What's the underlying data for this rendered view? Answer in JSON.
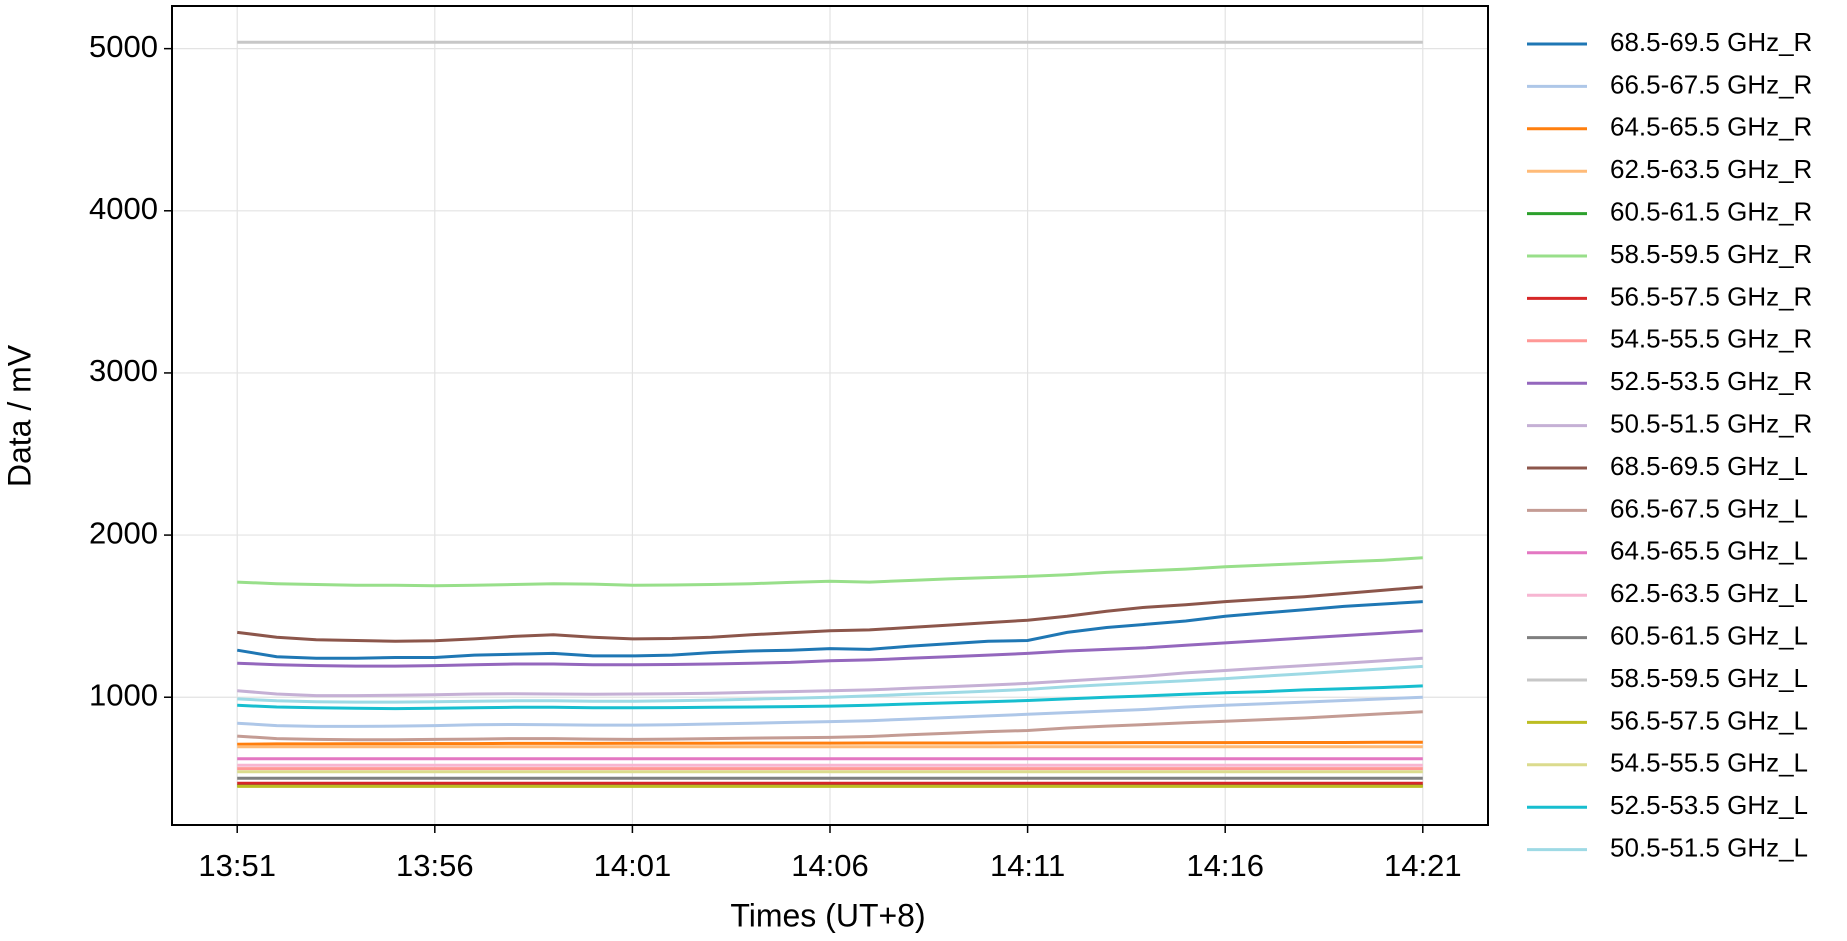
{
  "chart_data": {
    "type": "line",
    "xlabel": "Times (UT+8)",
    "ylabel": "Data / mV",
    "x": [
      "13:51",
      "13:52",
      "13:53",
      "13:54",
      "13:55",
      "13:56",
      "13:57",
      "13:58",
      "13:59",
      "14:00",
      "14:01",
      "14:02",
      "14:03",
      "14:04",
      "14:05",
      "14:06",
      "14:07",
      "14:08",
      "14:09",
      "14:10",
      "14:11",
      "14:12",
      "14:13",
      "14:14",
      "14:15",
      "14:16",
      "14:17",
      "14:18",
      "14:19",
      "14:20",
      "14:21"
    ],
    "xticks": [
      "13:51",
      "13:56",
      "14:01",
      "14:06",
      "14:11",
      "14:16",
      "14:21"
    ],
    "ylim": [
      212,
      5263
    ],
    "yticks": [
      1000,
      2000,
      3000,
      4000,
      5000
    ],
    "grid": true,
    "legend": "outside-right",
    "series": [
      {
        "name": "68.5-69.5 GHz_R",
        "color": "#1f77b4",
        "values": [
          1290,
          1250,
          1240,
          1240,
          1245,
          1245,
          1260,
          1265,
          1270,
          1255,
          1255,
          1260,
          1275,
          1285,
          1290,
          1300,
          1295,
          1315,
          1330,
          1345,
          1350,
          1400,
          1430,
          1450,
          1470,
          1500,
          1520,
          1540,
          1560,
          1575,
          1590
        ]
      },
      {
        "name": "66.5-67.5 GHz_R",
        "color": "#aec7e8",
        "values": [
          840,
          825,
          820,
          820,
          822,
          825,
          830,
          832,
          830,
          828,
          828,
          830,
          835,
          840,
          845,
          850,
          855,
          865,
          875,
          885,
          895,
          905,
          915,
          925,
          940,
          950,
          960,
          970,
          980,
          990,
          1000
        ]
      },
      {
        "name": "64.5-65.5 GHz_R",
        "color": "#ff7f0e",
        "values": [
          710,
          712,
          712,
          713,
          713,
          714,
          714,
          715,
          715,
          715,
          716,
          716,
          716,
          717,
          717,
          717,
          718,
          718,
          718,
          718,
          719,
          719,
          719,
          720,
          720,
          720,
          721,
          721,
          721,
          722,
          722
        ]
      },
      {
        "name": "62.5-63.5 GHz_R",
        "color": "#ffbb78",
        "values": [
          695,
          695,
          695,
          695,
          695,
          695,
          695,
          695,
          695,
          695,
          695,
          695,
          695,
          695,
          695,
          695,
          695,
          695,
          695,
          695,
          695,
          695,
          695,
          695,
          695,
          695,
          695,
          695,
          695,
          695,
          695
        ]
      },
      {
        "name": "60.5-61.5 GHz_R",
        "color": "#2ca02c",
        "values": [
          455,
          455,
          455,
          455,
          455,
          455,
          455,
          455,
          455,
          455,
          455,
          455,
          455,
          455,
          455,
          455,
          455,
          455,
          455,
          455,
          455,
          455,
          455,
          455,
          455,
          455,
          455,
          455,
          455,
          455,
          455
        ]
      },
      {
        "name": "58.5-59.5 GHz_R",
        "color": "#98df8a",
        "values": [
          1710,
          1700,
          1695,
          1690,
          1690,
          1688,
          1690,
          1695,
          1700,
          1698,
          1690,
          1692,
          1695,
          1700,
          1708,
          1715,
          1710,
          1720,
          1730,
          1738,
          1745,
          1755,
          1770,
          1780,
          1790,
          1805,
          1815,
          1825,
          1835,
          1845,
          1860
        ]
      },
      {
        "name": "56.5-57.5 GHz_R",
        "color": "#d62728",
        "values": [
          470,
          470,
          470,
          470,
          470,
          470,
          470,
          470,
          470,
          470,
          470,
          470,
          470,
          470,
          470,
          470,
          470,
          470,
          470,
          470,
          470,
          470,
          470,
          470,
          470,
          470,
          470,
          470,
          470,
          470,
          470
        ]
      },
      {
        "name": "54.5-55.5 GHz_R",
        "color": "#ff9896",
        "values": [
          560,
          560,
          560,
          560,
          560,
          560,
          560,
          560,
          560,
          560,
          560,
          560,
          560,
          560,
          560,
          560,
          560,
          560,
          560,
          560,
          560,
          560,
          560,
          560,
          560,
          560,
          560,
          560,
          560,
          560,
          560
        ]
      },
      {
        "name": "52.5-53.5 GHz_R",
        "color": "#9467bd",
        "values": [
          1210,
          1200,
          1195,
          1192,
          1192,
          1195,
          1200,
          1205,
          1205,
          1200,
          1200,
          1202,
          1205,
          1210,
          1215,
          1225,
          1230,
          1240,
          1250,
          1260,
          1270,
          1285,
          1295,
          1305,
          1320,
          1335,
          1350,
          1365,
          1380,
          1395,
          1410
        ]
      },
      {
        "name": "50.5-51.5 GHz_R",
        "color": "#c5b0d5",
        "values": [
          1040,
          1020,
          1010,
          1010,
          1012,
          1015,
          1020,
          1022,
          1020,
          1018,
          1020,
          1022,
          1025,
          1030,
          1035,
          1040,
          1045,
          1055,
          1065,
          1075,
          1085,
          1100,
          1115,
          1130,
          1150,
          1165,
          1180,
          1195,
          1210,
          1225,
          1240
        ]
      },
      {
        "name": "68.5-69.5 GHz_L",
        "color": "#8c564b",
        "values": [
          1400,
          1370,
          1355,
          1350,
          1345,
          1348,
          1360,
          1375,
          1385,
          1370,
          1360,
          1362,
          1370,
          1385,
          1398,
          1410,
          1415,
          1430,
          1445,
          1460,
          1475,
          1500,
          1530,
          1555,
          1570,
          1590,
          1605,
          1620,
          1640,
          1660,
          1680
        ]
      },
      {
        "name": "66.5-67.5 GHz_L",
        "color": "#c49c94",
        "values": [
          760,
          745,
          740,
          738,
          738,
          740,
          742,
          745,
          745,
          742,
          740,
          742,
          745,
          748,
          750,
          752,
          758,
          768,
          778,
          788,
          795,
          810,
          822,
          832,
          842,
          852,
          862,
          872,
          885,
          898,
          910
        ]
      },
      {
        "name": "64.5-65.5 GHz_L",
        "color": "#e377c2",
        "values": [
          620,
          620,
          620,
          620,
          620,
          620,
          620,
          620,
          620,
          620,
          620,
          620,
          620,
          620,
          620,
          620,
          620,
          620,
          620,
          620,
          620,
          620,
          620,
          620,
          620,
          620,
          620,
          620,
          620,
          620,
          620
        ]
      },
      {
        "name": "62.5-63.5 GHz_L",
        "color": "#f7b6d2",
        "values": [
          580,
          580,
          580,
          580,
          580,
          580,
          580,
          580,
          580,
          580,
          580,
          580,
          580,
          580,
          580,
          580,
          580,
          580,
          580,
          580,
          580,
          580,
          580,
          580,
          580,
          580,
          580,
          580,
          580,
          580,
          580
        ]
      },
      {
        "name": "60.5-61.5 GHz_L",
        "color": "#7f7f7f",
        "values": [
          500,
          500,
          500,
          500,
          500,
          500,
          500,
          500,
          500,
          500,
          500,
          500,
          500,
          500,
          500,
          500,
          500,
          500,
          500,
          500,
          500,
          500,
          500,
          500,
          500,
          500,
          500,
          500,
          500,
          500,
          500
        ]
      },
      {
        "name": "58.5-59.5 GHz_L",
        "color": "#c7c7c7",
        "values": [
          5040,
          5040,
          5040,
          5040,
          5040,
          5040,
          5040,
          5040,
          5040,
          5040,
          5040,
          5040,
          5040,
          5040,
          5040,
          5040,
          5040,
          5040,
          5040,
          5040,
          5040,
          5040,
          5040,
          5040,
          5040,
          5040,
          5040,
          5040,
          5040,
          5040,
          5040
        ]
      },
      {
        "name": "56.5-57.5 GHz_L",
        "color": "#bcbd22",
        "values": [
          450,
          450,
          450,
          450,
          450,
          450,
          450,
          450,
          450,
          450,
          450,
          450,
          450,
          450,
          450,
          450,
          450,
          450,
          450,
          450,
          450,
          450,
          450,
          450,
          450,
          450,
          450,
          450,
          450,
          450,
          450
        ]
      },
      {
        "name": "54.5-55.5 GHz_L",
        "color": "#dbdb8d",
        "values": [
          540,
          540,
          540,
          540,
          540,
          540,
          540,
          540,
          540,
          540,
          540,
          540,
          540,
          540,
          540,
          540,
          540,
          540,
          540,
          540,
          540,
          540,
          540,
          540,
          540,
          540,
          540,
          540,
          540,
          540,
          540
        ]
      },
      {
        "name": "52.5-53.5 GHz_L",
        "color": "#17becf",
        "values": [
          950,
          940,
          935,
          932,
          930,
          932,
          935,
          938,
          938,
          935,
          935,
          936,
          938,
          940,
          942,
          945,
          950,
          958,
          965,
          972,
          980,
          990,
          1000,
          1008,
          1018,
          1028,
          1035,
          1045,
          1052,
          1060,
          1070
        ]
      },
      {
        "name": "50.5-51.5 GHz_L",
        "color": "#9edae5",
        "values": [
          990,
          978,
          972,
          970,
          970,
          972,
          975,
          978,
          978,
          975,
          975,
          978,
          982,
          988,
          994,
          1000,
          1008,
          1018,
          1028,
          1038,
          1048,
          1065,
          1078,
          1090,
          1102,
          1115,
          1130,
          1145,
          1160,
          1175,
          1190
        ]
      }
    ]
  }
}
